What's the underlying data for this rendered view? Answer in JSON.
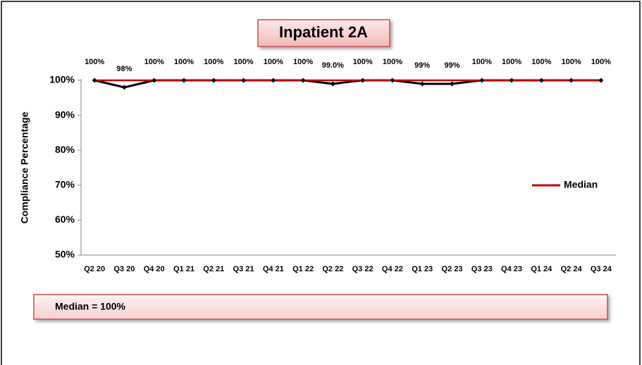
{
  "chart_data": {
    "type": "line",
    "title": "Inpatient 2A",
    "y_label": "Compliance Percentage",
    "annotation": "Median = 100%",
    "categories": [
      "Q2 20",
      "Q3 20",
      "Q4 20",
      "Q1 21",
      "Q2 21",
      "Q3 21",
      "Q4 21",
      "Q1 22",
      "Q2 22",
      "Q3 22",
      "Q4 22",
      "Q1 23",
      "Q2 23",
      "Q3 23",
      "Q4 23",
      "Q1 24",
      "Q2 24",
      "Q3 24"
    ],
    "series": [
      {
        "color": "#000000",
        "values": [
          100,
          98,
          100,
          100,
          100,
          100,
          100,
          100,
          99,
          100,
          100,
          99,
          99,
          100,
          100,
          100,
          100,
          100
        ],
        "value_labels": [
          "100%",
          "98%",
          "100%",
          "100%",
          "100%",
          "100%",
          "100%",
          "100%",
          "99.0%",
          "100%",
          "100%",
          "99%",
          "99%",
          "100%",
          "100%",
          "100%",
          "100%",
          "100%"
        ]
      },
      {
        "name": "Median",
        "color": "#c00000",
        "values": [
          100,
          100,
          100,
          100,
          100,
          100,
          100,
          100,
          100,
          100,
          100,
          100,
          100,
          100,
          100,
          100,
          100,
          100
        ]
      }
    ],
    "ylim": [
      50,
      100
    ],
    "yticks": [
      {
        "value": 50,
        "label": "50%"
      },
      {
        "value": 60,
        "label": "60%"
      },
      {
        "value": 70,
        "label": "70%"
      },
      {
        "value": 80,
        "label": "80%"
      },
      {
        "value": 90,
        "label": "90%"
      },
      {
        "value": 100,
        "label": "100%"
      }
    ],
    "grid": false,
    "legend": "right"
  }
}
